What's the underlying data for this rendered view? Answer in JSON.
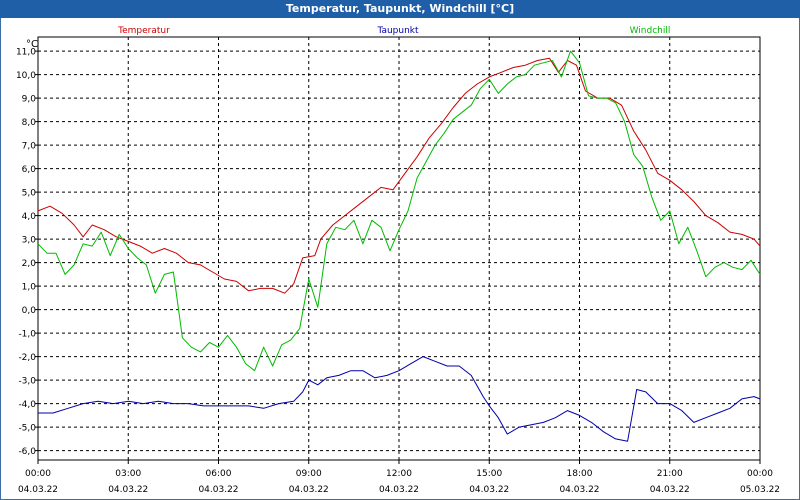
{
  "window": {
    "title": "Temperatur, Taupunkt, Windchill [°C]"
  },
  "colors": {
    "titlebar": "#1f5fa8",
    "temperatur": "#cc0000",
    "taupunkt": "#0000aa",
    "windchill": "#00bb00",
    "grid": "#000000"
  },
  "chart_data": {
    "type": "line",
    "title": "Temperatur, Taupunkt, Windchill [°C]",
    "ylabel": "°C",
    "ylim": [
      -6.4,
      11.6
    ],
    "yticks": [
      {
        "value": 11,
        "label": "11,0"
      },
      {
        "value": 10,
        "label": "10,0"
      },
      {
        "value": 9,
        "label": "9,0"
      },
      {
        "value": 8,
        "label": "8,0"
      },
      {
        "value": 7,
        "label": "7,0"
      },
      {
        "value": 6,
        "label": "6,0"
      },
      {
        "value": 5,
        "label": "5,0"
      },
      {
        "value": 4,
        "label": "4,0"
      },
      {
        "value": 3,
        "label": "3,0"
      },
      {
        "value": 2,
        "label": "2,0"
      },
      {
        "value": 1,
        "label": "1,0"
      },
      {
        "value": 0,
        "label": "0,0"
      },
      {
        "value": -1,
        "label": "-1,0"
      },
      {
        "value": -2,
        "label": "-2,0"
      },
      {
        "value": -3,
        "label": "-3,0"
      },
      {
        "value": -4,
        "label": "-4,0"
      },
      {
        "value": -5,
        "label": "-5,0"
      },
      {
        "value": -6,
        "label": "-6,0"
      }
    ],
    "xlim": [
      0,
      24
    ],
    "xticks": [
      {
        "value": 0,
        "time": "00:00",
        "date": "04.03.22"
      },
      {
        "value": 3,
        "time": "03:00",
        "date": "04.03.22"
      },
      {
        "value": 6,
        "time": "06:00",
        "date": "04.03.22"
      },
      {
        "value": 9,
        "time": "09:00",
        "date": "04.03.22"
      },
      {
        "value": 12,
        "time": "12:00",
        "date": "04.03.22"
      },
      {
        "value": 15,
        "time": "15:00",
        "date": "04.03.22"
      },
      {
        "value": 18,
        "time": "18:00",
        "date": "04.03.22"
      },
      {
        "value": 21,
        "time": "21:00",
        "date": "04.03.22"
      },
      {
        "value": 24,
        "time": "00:00",
        "date": "05.03.22"
      }
    ],
    "grid": true,
    "series": [
      {
        "name": "Temperatur",
        "color": "#cc0000",
        "points": [
          [
            0,
            4.2
          ],
          [
            0.4,
            4.4
          ],
          [
            0.8,
            4.1
          ],
          [
            1.2,
            3.6
          ],
          [
            1.5,
            3.1
          ],
          [
            1.8,
            3.6
          ],
          [
            2.2,
            3.4
          ],
          [
            2.6,
            3.1
          ],
          [
            3.0,
            2.9
          ],
          [
            3.4,
            2.7
          ],
          [
            3.8,
            2.4
          ],
          [
            4.2,
            2.6
          ],
          [
            4.6,
            2.4
          ],
          [
            5.0,
            2.0
          ],
          [
            5.4,
            1.9
          ],
          [
            5.8,
            1.6
          ],
          [
            6.2,
            1.3
          ],
          [
            6.6,
            1.2
          ],
          [
            7.0,
            0.8
          ],
          [
            7.4,
            0.9
          ],
          [
            7.8,
            0.9
          ],
          [
            8.2,
            0.7
          ],
          [
            8.5,
            1.1
          ],
          [
            8.8,
            2.2
          ],
          [
            9.2,
            2.3
          ],
          [
            9.4,
            3.0
          ],
          [
            9.8,
            3.6
          ],
          [
            10.2,
            4.0
          ],
          [
            10.6,
            4.4
          ],
          [
            11.0,
            4.8
          ],
          [
            11.4,
            5.2
          ],
          [
            11.8,
            5.1
          ],
          [
            12.2,
            5.8
          ],
          [
            12.6,
            6.5
          ],
          [
            13.0,
            7.3
          ],
          [
            13.4,
            7.9
          ],
          [
            13.8,
            8.6
          ],
          [
            14.2,
            9.2
          ],
          [
            14.6,
            9.6
          ],
          [
            15.0,
            9.9
          ],
          [
            15.4,
            10.1
          ],
          [
            15.8,
            10.3
          ],
          [
            16.2,
            10.4
          ],
          [
            16.6,
            10.6
          ],
          [
            17.0,
            10.7
          ],
          [
            17.3,
            10.1
          ],
          [
            17.6,
            10.6
          ],
          [
            17.9,
            10.4
          ],
          [
            18.2,
            9.3
          ],
          [
            18.6,
            9.0
          ],
          [
            19.0,
            9.0
          ],
          [
            19.4,
            8.7
          ],
          [
            19.8,
            7.6
          ],
          [
            20.2,
            6.8
          ],
          [
            20.6,
            5.8
          ],
          [
            21.0,
            5.5
          ],
          [
            21.4,
            5.1
          ],
          [
            21.8,
            4.6
          ],
          [
            22.2,
            4.0
          ],
          [
            22.6,
            3.7
          ],
          [
            23.0,
            3.3
          ],
          [
            23.4,
            3.2
          ],
          [
            23.8,
            3.0
          ],
          [
            24.0,
            2.7
          ]
        ]
      },
      {
        "name": "Taupunkt",
        "color": "#0000aa",
        "points": [
          [
            0,
            -4.4
          ],
          [
            0.5,
            -4.4
          ],
          [
            1.0,
            -4.2
          ],
          [
            1.5,
            -4.0
          ],
          [
            2.0,
            -3.9
          ],
          [
            2.5,
            -4.0
          ],
          [
            3.0,
            -3.9
          ],
          [
            3.5,
            -4.0
          ],
          [
            4.0,
            -3.9
          ],
          [
            4.5,
            -4.0
          ],
          [
            5.0,
            -4.0
          ],
          [
            5.5,
            -4.1
          ],
          [
            6.0,
            -4.1
          ],
          [
            6.5,
            -4.1
          ],
          [
            7.0,
            -4.1
          ],
          [
            7.5,
            -4.2
          ],
          [
            8.0,
            -4.0
          ],
          [
            8.5,
            -3.9
          ],
          [
            8.8,
            -3.5
          ],
          [
            9.0,
            -3.0
          ],
          [
            9.3,
            -3.2
          ],
          [
            9.6,
            -2.9
          ],
          [
            10.0,
            -2.8
          ],
          [
            10.4,
            -2.6
          ],
          [
            10.8,
            -2.6
          ],
          [
            11.2,
            -2.9
          ],
          [
            11.6,
            -2.8
          ],
          [
            12.0,
            -2.6
          ],
          [
            12.4,
            -2.3
          ],
          [
            12.8,
            -2.0
          ],
          [
            13.2,
            -2.2
          ],
          [
            13.6,
            -2.4
          ],
          [
            14.0,
            -2.4
          ],
          [
            14.4,
            -2.8
          ],
          [
            14.8,
            -3.7
          ],
          [
            15.0,
            -4.1
          ],
          [
            15.3,
            -4.6
          ],
          [
            15.6,
            -5.3
          ],
          [
            16.0,
            -5.0
          ],
          [
            16.4,
            -4.9
          ],
          [
            16.8,
            -4.8
          ],
          [
            17.2,
            -4.6
          ],
          [
            17.6,
            -4.3
          ],
          [
            18.0,
            -4.5
          ],
          [
            18.4,
            -4.8
          ],
          [
            18.8,
            -5.2
          ],
          [
            19.2,
            -5.5
          ],
          [
            19.6,
            -5.6
          ],
          [
            19.9,
            -3.4
          ],
          [
            20.2,
            -3.5
          ],
          [
            20.6,
            -4.0
          ],
          [
            21.0,
            -4.0
          ],
          [
            21.4,
            -4.3
          ],
          [
            21.8,
            -4.8
          ],
          [
            22.2,
            -4.6
          ],
          [
            22.6,
            -4.4
          ],
          [
            23.0,
            -4.2
          ],
          [
            23.4,
            -3.8
          ],
          [
            23.8,
            -3.7
          ],
          [
            24.0,
            -3.8
          ]
        ]
      },
      {
        "name": "Windchill",
        "color": "#00bb00",
        "points": [
          [
            0,
            2.8
          ],
          [
            0.3,
            2.4
          ],
          [
            0.6,
            2.4
          ],
          [
            0.9,
            1.5
          ],
          [
            1.2,
            1.9
          ],
          [
            1.5,
            2.8
          ],
          [
            1.8,
            2.7
          ],
          [
            2.1,
            3.3
          ],
          [
            2.4,
            2.3
          ],
          [
            2.7,
            3.2
          ],
          [
            3.0,
            2.6
          ],
          [
            3.3,
            2.2
          ],
          [
            3.6,
            1.9
          ],
          [
            3.9,
            0.7
          ],
          [
            4.2,
            1.5
          ],
          [
            4.5,
            1.6
          ],
          [
            4.8,
            -1.2
          ],
          [
            5.1,
            -1.6
          ],
          [
            5.4,
            -1.8
          ],
          [
            5.7,
            -1.4
          ],
          [
            6.0,
            -1.6
          ],
          [
            6.3,
            -1.1
          ],
          [
            6.6,
            -1.6
          ],
          [
            6.9,
            -2.3
          ],
          [
            7.2,
            -2.6
          ],
          [
            7.5,
            -1.6
          ],
          [
            7.8,
            -2.4
          ],
          [
            8.1,
            -1.5
          ],
          [
            8.4,
            -1.3
          ],
          [
            8.7,
            -0.8
          ],
          [
            9.0,
            1.3
          ],
          [
            9.3,
            0.1
          ],
          [
            9.6,
            2.8
          ],
          [
            9.9,
            3.5
          ],
          [
            10.2,
            3.4
          ],
          [
            10.5,
            3.8
          ],
          [
            10.8,
            2.8
          ],
          [
            11.1,
            3.8
          ],
          [
            11.4,
            3.5
          ],
          [
            11.7,
            2.5
          ],
          [
            12.0,
            3.4
          ],
          [
            12.3,
            4.2
          ],
          [
            12.6,
            5.6
          ],
          [
            12.9,
            6.3
          ],
          [
            13.2,
            7.0
          ],
          [
            13.5,
            7.5
          ],
          [
            13.8,
            8.1
          ],
          [
            14.1,
            8.4
          ],
          [
            14.4,
            8.7
          ],
          [
            14.7,
            9.4
          ],
          [
            15.0,
            9.8
          ],
          [
            15.3,
            9.2
          ],
          [
            15.6,
            9.6
          ],
          [
            15.9,
            9.9
          ],
          [
            16.2,
            10.0
          ],
          [
            16.5,
            10.4
          ],
          [
            16.8,
            10.5
          ],
          [
            17.1,
            10.6
          ],
          [
            17.4,
            9.9
          ],
          [
            17.7,
            11.0
          ],
          [
            18.0,
            10.5
          ],
          [
            18.3,
            9.1
          ],
          [
            18.6,
            9.0
          ],
          [
            18.9,
            9.0
          ],
          [
            19.2,
            8.8
          ],
          [
            19.5,
            8.0
          ],
          [
            19.8,
            6.6
          ],
          [
            20.1,
            6.1
          ],
          [
            20.4,
            4.8
          ],
          [
            20.7,
            3.8
          ],
          [
            21.0,
            4.2
          ],
          [
            21.3,
            2.8
          ],
          [
            21.6,
            3.5
          ],
          [
            21.9,
            2.5
          ],
          [
            22.2,
            1.4
          ],
          [
            22.5,
            1.8
          ],
          [
            22.8,
            2.0
          ],
          [
            23.1,
            1.8
          ],
          [
            23.4,
            1.7
          ],
          [
            23.7,
            2.1
          ],
          [
            24.0,
            1.5
          ]
        ]
      }
    ]
  }
}
